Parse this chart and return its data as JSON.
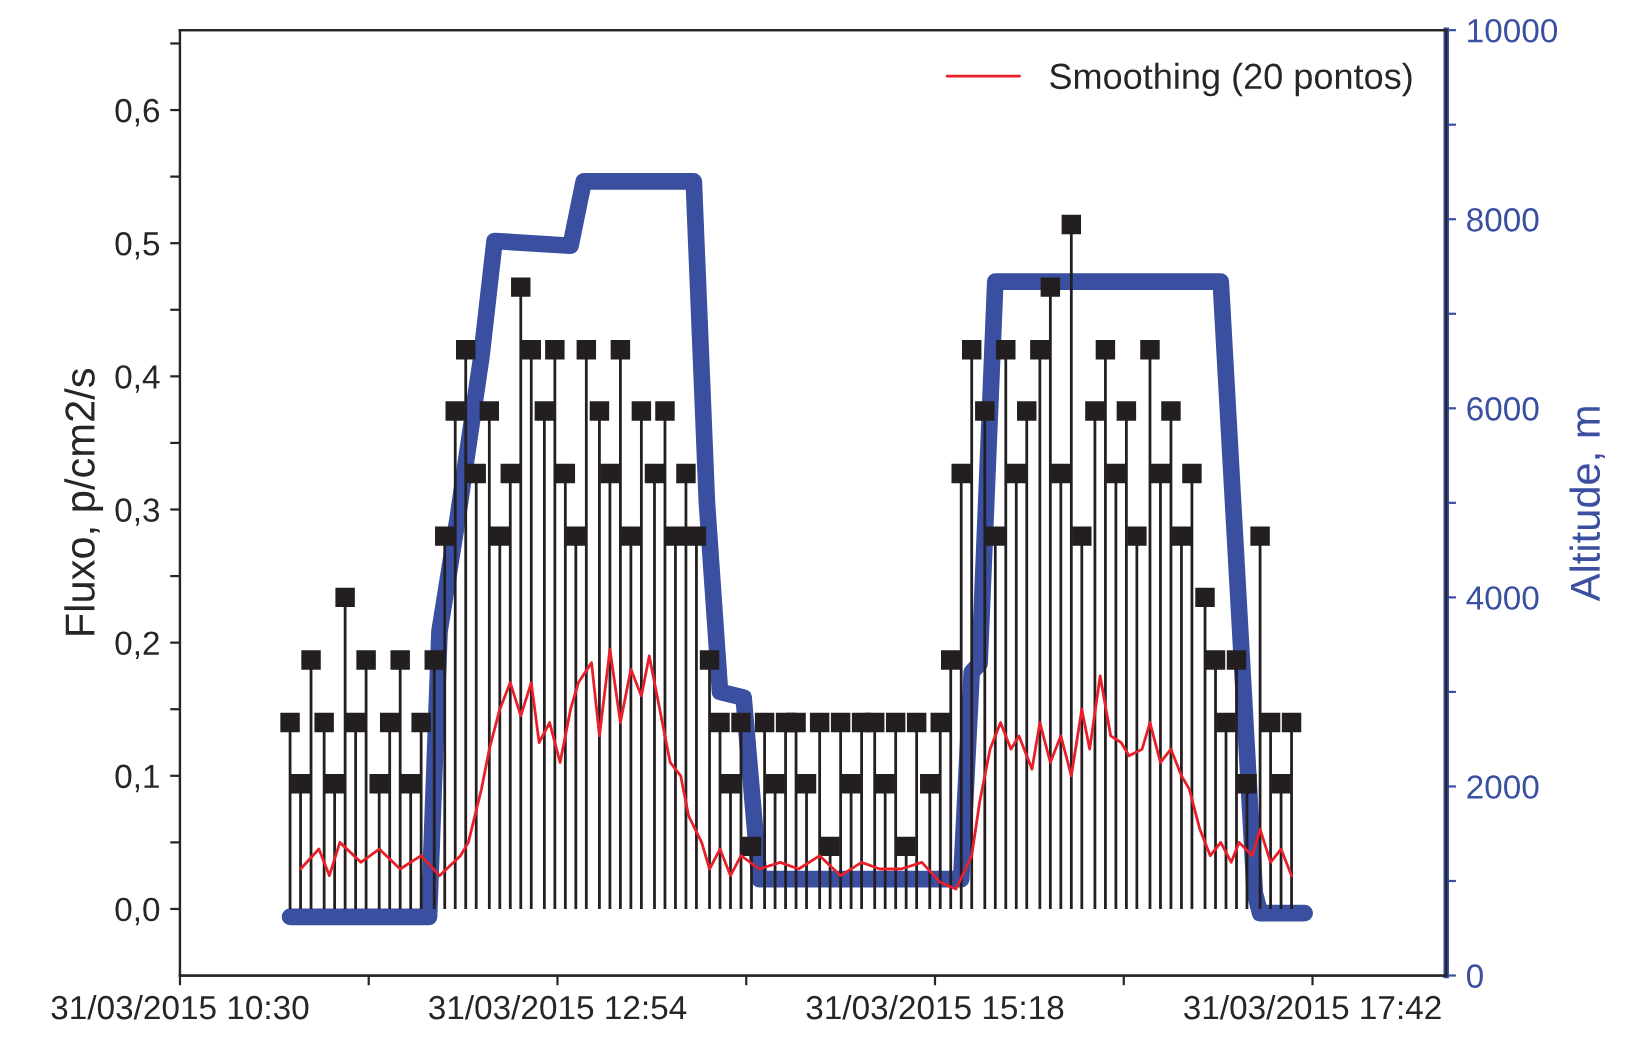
{
  "chart_data": {
    "type": "line",
    "xlim": [
      "2015-03-31T10:30",
      "2015-03-31T18:33"
    ],
    "xticks": [
      {
        "value": "2015-03-31T10:30",
        "label": "31/03/2015 10:30"
      },
      {
        "value": "2015-03-31T11:42",
        "label": null
      },
      {
        "value": "2015-03-31T12:54",
        "label": "31/03/2015 12:54"
      },
      {
        "value": "2015-03-31T14:06",
        "label": null
      },
      {
        "value": "2015-03-31T15:18",
        "label": "31/03/2015 15:18"
      },
      {
        "value": "2015-03-31T16:30",
        "label": null
      },
      {
        "value": "2015-03-31T17:42",
        "label": "31/03/2015 17:42"
      }
    ],
    "ylim": [
      -0.05,
      0.66
    ],
    "yticks": [
      {
        "value": 0.0,
        "label": "0,0"
      },
      {
        "value": 0.05,
        "label": null
      },
      {
        "value": 0.1,
        "label": "0,1"
      },
      {
        "value": 0.15,
        "label": null
      },
      {
        "value": 0.2,
        "label": "0,2"
      },
      {
        "value": 0.25,
        "label": null
      },
      {
        "value": 0.3,
        "label": "0,3"
      },
      {
        "value": 0.35,
        "label": null
      },
      {
        "value": 0.4,
        "label": "0,4"
      },
      {
        "value": 0.45,
        "label": null
      },
      {
        "value": 0.5,
        "label": "0,5"
      },
      {
        "value": 0.55,
        "label": null
      },
      {
        "value": 0.6,
        "label": "0,6"
      },
      {
        "value": 0.65,
        "label": null
      }
    ],
    "y2lim": [
      0,
      10000
    ],
    "y2ticks": [
      0,
      {
        "value": 1000,
        "label": null
      },
      2000,
      {
        "value": 3000,
        "label": null
      },
      4000,
      {
        "value": 5000,
        "label": null
      },
      6000,
      {
        "value": 7000,
        "label": null
      },
      8000,
      {
        "value": 9000,
        "label": null
      },
      10000
    ],
    "ylabel": "Fluxo, p/cm2/s",
    "y2label": "Altitude, m",
    "legend": "top right",
    "series": [
      {
        "type": "lollipop",
        "marker": "square",
        "color": "#231f20",
        "x": [
          "2015-03-31T11:12",
          "2015-03-31T11:16",
          "2015-03-31T11:20",
          "2015-03-31T11:25",
          "2015-03-31T11:29",
          "2015-03-31T11:33",
          "2015-03-31T11:37",
          "2015-03-31T11:41",
          "2015-03-31T11:46",
          "2015-03-31T11:50",
          "2015-03-31T11:54",
          "2015-03-31T11:58",
          "2015-03-31T12:02",
          "2015-03-31T12:07",
          "2015-03-31T12:11",
          "2015-03-31T12:15",
          "2015-03-31T12:19",
          "2015-03-31T12:23",
          "2015-03-31T12:28",
          "2015-03-31T12:32",
          "2015-03-31T12:36",
          "2015-03-31T12:40",
          "2015-03-31T12:44",
          "2015-03-31T12:49",
          "2015-03-31T12:53",
          "2015-03-31T12:57",
          "2015-03-31T13:01",
          "2015-03-31T13:05",
          "2015-03-31T13:10",
          "2015-03-31T13:14",
          "2015-03-31T13:18",
          "2015-03-31T13:22",
          "2015-03-31T13:26",
          "2015-03-31T13:31",
          "2015-03-31T13:35",
          "2015-03-31T13:39",
          "2015-03-31T13:43",
          "2015-03-31T13:47",
          "2015-03-31T13:52",
          "2015-03-31T13:56",
          "2015-03-31T14:00",
          "2015-03-31T14:04",
          "2015-03-31T14:08",
          "2015-03-31T14:13",
          "2015-03-31T14:17",
          "2015-03-31T14:21",
          "2015-03-31T14:25",
          "2015-03-31T14:29",
          "2015-03-31T14:34",
          "2015-03-31T14:38",
          "2015-03-31T14:42",
          "2015-03-31T14:46",
          "2015-03-31T14:50",
          "2015-03-31T14:55",
          "2015-03-31T14:59",
          "2015-03-31T15:03",
          "2015-03-31T15:07",
          "2015-03-31T15:11",
          "2015-03-31T15:16",
          "2015-03-31T15:20",
          "2015-03-31T15:24",
          "2015-03-31T15:28",
          "2015-03-31T15:32",
          "2015-03-31T15:37",
          "2015-03-31T15:41",
          "2015-03-31T15:45",
          "2015-03-31T15:49",
          "2015-03-31T15:53",
          "2015-03-31T15:58",
          "2015-03-31T16:02",
          "2015-03-31T16:06",
          "2015-03-31T16:10",
          "2015-03-31T16:14",
          "2015-03-31T16:19",
          "2015-03-31T16:23",
          "2015-03-31T16:27",
          "2015-03-31T16:31",
          "2015-03-31T16:35",
          "2015-03-31T16:40",
          "2015-03-31T16:44",
          "2015-03-31T16:48",
          "2015-03-31T16:52",
          "2015-03-31T16:56",
          "2015-03-31T17:01",
          "2015-03-31T17:05",
          "2015-03-31T17:09",
          "2015-03-31T17:13",
          "2015-03-31T17:17",
          "2015-03-31T17:22",
          "2015-03-31T17:26",
          "2015-03-31T17:30",
          "2015-03-31T17:34"
        ],
        "values": [
          0.14,
          0.094,
          0.187,
          0.14,
          0.094,
          0.234,
          0.14,
          0.187,
          0.094,
          0.14,
          0.187,
          0.094,
          0.14,
          0.187,
          0.28,
          0.374,
          0.42,
          0.327,
          0.374,
          0.28,
          0.327,
          0.467,
          0.42,
          0.374,
          0.42,
          0.327,
          0.28,
          0.42,
          0.374,
          0.327,
          0.42,
          0.28,
          0.374,
          0.327,
          0.374,
          0.28,
          0.327,
          0.28,
          0.187,
          0.14,
          0.094,
          0.14,
          0.047,
          0.14,
          0.094,
          0.14,
          0.14,
          0.094,
          0.14,
          0.047,
          0.14,
          0.094,
          0.14,
          0.14,
          0.094,
          0.14,
          0.047,
          0.14,
          0.094,
          0.14,
          0.187,
          0.327,
          0.42,
          0.374,
          0.28,
          0.42,
          0.327,
          0.374,
          0.42,
          0.467,
          0.327,
          0.514,
          0.28,
          0.374,
          0.42,
          0.327,
          0.374,
          0.28,
          0.42,
          0.327,
          0.374,
          0.28,
          0.327,
          0.234,
          0.187,
          0.14,
          0.187,
          0.094,
          0.28,
          0.14,
          0.094,
          0.14
        ]
      },
      {
        "name": "Smoothing (20 pontos)",
        "color": "#e8202a",
        "x": [
          "2015-03-31T11:16",
          "2015-03-31T11:23",
          "2015-03-31T11:27",
          "2015-03-31T11:31",
          "2015-03-31T11:39",
          "2015-03-31T11:46",
          "2015-03-31T11:54",
          "2015-03-31T12:02",
          "2015-03-31T12:09",
          "2015-03-31T12:17",
          "2015-03-31T12:20",
          "2015-03-31T12:25",
          "2015-03-31T12:28",
          "2015-03-31T12:32",
          "2015-03-31T12:36",
          "2015-03-31T12:40",
          "2015-03-31T12:44",
          "2015-03-31T12:47",
          "2015-03-31T12:51",
          "2015-03-31T12:55",
          "2015-03-31T12:59",
          "2015-03-31T13:02",
          "2015-03-31T13:07",
          "2015-03-31T13:10",
          "2015-03-31T13:14",
          "2015-03-31T13:18",
          "2015-03-31T13:22",
          "2015-03-31T13:26",
          "2015-03-31T13:29",
          "2015-03-31T13:33",
          "2015-03-31T13:37",
          "2015-03-31T13:41",
          "2015-03-31T13:44",
          "2015-03-31T13:49",
          "2015-03-31T13:52",
          "2015-03-31T13:56",
          "2015-03-31T14:00",
          "2015-03-31T14:04",
          "2015-03-31T14:11",
          "2015-03-31T14:19",
          "2015-03-31T14:26",
          "2015-03-31T14:34",
          "2015-03-31T14:42",
          "2015-03-31T14:50",
          "2015-03-31T14:57",
          "2015-03-31T15:05",
          "2015-03-31T15:13",
          "2015-03-31T15:20",
          "2015-03-31T15:26",
          "2015-03-31T15:32",
          "2015-03-31T15:35",
          "2015-03-31T15:39",
          "2015-03-31T15:43",
          "2015-03-31T15:47",
          "2015-03-31T15:50",
          "2015-03-31T15:55",
          "2015-03-31T15:58",
          "2015-03-31T16:02",
          "2015-03-31T16:06",
          "2015-03-31T16:10",
          "2015-03-31T16:14",
          "2015-03-31T16:17",
          "2015-03-31T16:21",
          "2015-03-31T16:25",
          "2015-03-31T16:29",
          "2015-03-31T16:32",
          "2015-03-31T16:37",
          "2015-03-31T16:40",
          "2015-03-31T16:44",
          "2015-03-31T16:48",
          "2015-03-31T16:52",
          "2015-03-31T16:55",
          "2015-03-31T16:59",
          "2015-03-31T17:03",
          "2015-03-31T17:07",
          "2015-03-31T17:11",
          "2015-03-31T17:14",
          "2015-03-31T17:19",
          "2015-03-31T17:22",
          "2015-03-31T17:26",
          "2015-03-31T17:30",
          "2015-03-31T17:34"
        ],
        "values": [
          0.03,
          0.045,
          0.025,
          0.05,
          0.035,
          0.045,
          0.03,
          0.04,
          0.025,
          0.04,
          0.05,
          0.09,
          0.12,
          0.15,
          0.17,
          0.145,
          0.17,
          0.125,
          0.14,
          0.11,
          0.15,
          0.17,
          0.185,
          0.13,
          0.195,
          0.14,
          0.18,
          0.16,
          0.19,
          0.15,
          0.11,
          0.1,
          0.07,
          0.05,
          0.03,
          0.045,
          0.025,
          0.04,
          0.03,
          0.035,
          0.03,
          0.04,
          0.025,
          0.035,
          0.03,
          0.03,
          0.035,
          0.02,
          0.015,
          0.04,
          0.08,
          0.12,
          0.14,
          0.12,
          0.13,
          0.105,
          0.14,
          0.11,
          0.13,
          0.1,
          0.15,
          0.12,
          0.175,
          0.13,
          0.125,
          0.115,
          0.12,
          0.14,
          0.11,
          0.12,
          0.1,
          0.09,
          0.06,
          0.04,
          0.05,
          0.035,
          0.05,
          0.04,
          0.06,
          0.035,
          0.045,
          0.025
        ]
      },
      {
        "axis": "y2",
        "color": "#3a4fa0",
        "x": [
          "2015-03-31T11:12",
          "2015-03-31T12:05",
          "2015-03-31T12:09",
          "2015-03-31T12:16",
          "2015-03-31T12:25",
          "2015-03-31T12:30",
          "2015-03-31T12:59",
          "2015-03-31T13:04",
          "2015-03-31T13:46",
          "2015-03-31T13:51",
          "2015-03-31T13:56",
          "2015-03-31T14:05",
          "2015-03-31T14:11",
          "2015-03-31T15:28",
          "2015-03-31T15:32",
          "2015-03-31T15:35",
          "2015-03-31T15:41",
          "2015-03-31T17:07",
          "2015-03-31T17:20",
          "2015-03-31T17:22",
          "2015-03-31T17:39"
        ],
        "values": [
          620,
          620,
          3640,
          4850,
          6550,
          7770,
          7720,
          8400,
          8400,
          5000,
          3000,
          2940,
          1020,
          1020,
          3210,
          3300,
          7340,
          7340,
          870,
          660,
          660
        ]
      }
    ]
  }
}
